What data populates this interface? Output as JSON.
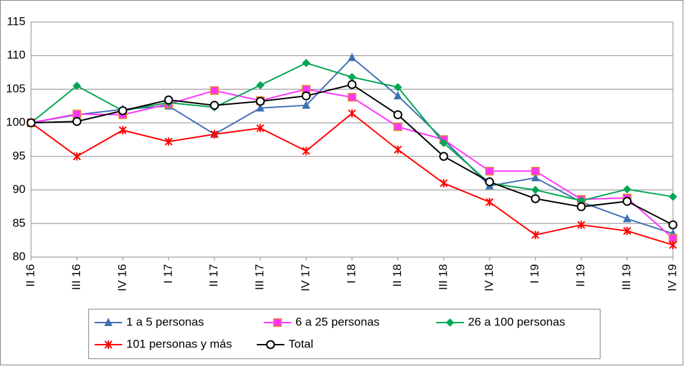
{
  "chart_data": {
    "type": "line",
    "categories": [
      "II 16",
      "III 16",
      "IV 16",
      "I 17",
      "II 17",
      "III 17",
      "IV 17",
      "I 18",
      "II 18",
      "III 18",
      "IV 18",
      "I 19",
      "II 19",
      "III 19",
      "IV 19"
    ],
    "series": [
      {
        "name": "1 a 5 personas",
        "color": "#3f6fb3",
        "marker": "triangle",
        "values": [
          100,
          101.2,
          102,
          102.5,
          98.3,
          102.2,
          102.6,
          109.7,
          104,
          97.5,
          90.6,
          91.8,
          88.2,
          85.7,
          83.5
        ]
      },
      {
        "name": "6 a 25 personas",
        "color": "#ff33ff",
        "marker": "square",
        "values": [
          100,
          101.3,
          101.2,
          102.8,
          104.8,
          103.3,
          105,
          103.8,
          99.4,
          97.5,
          92.8,
          92.8,
          88.6,
          88.8,
          82.8
        ]
      },
      {
        "name": "26 a 100 personas",
        "color": "#00a651",
        "marker": "diamond",
        "values": [
          100,
          105.5,
          101.8,
          103,
          102.3,
          105.6,
          108.9,
          106.8,
          105.3,
          97,
          91,
          90,
          88.4,
          90.1,
          89
        ]
      },
      {
        "name": "101 personas y más",
        "color": "#ff0000",
        "marker": "star",
        "values": [
          100,
          95,
          98.9,
          97.2,
          98.3,
          99.2,
          95.8,
          101.4,
          96,
          91,
          88.2,
          83.3,
          84.8,
          83.9,
          81.8
        ]
      },
      {
        "name": "Total",
        "color": "#000000",
        "marker": "circle",
        "values": [
          100,
          100.2,
          101.8,
          103.4,
          102.6,
          103.2,
          104,
          105.7,
          101.2,
          95,
          91.2,
          88.7,
          87.5,
          88.3,
          84.8
        ]
      }
    ],
    "ylim": [
      80,
      115
    ],
    "yticks": [
      80,
      85,
      90,
      95,
      100,
      105,
      110,
      115
    ],
    "grid": true
  }
}
